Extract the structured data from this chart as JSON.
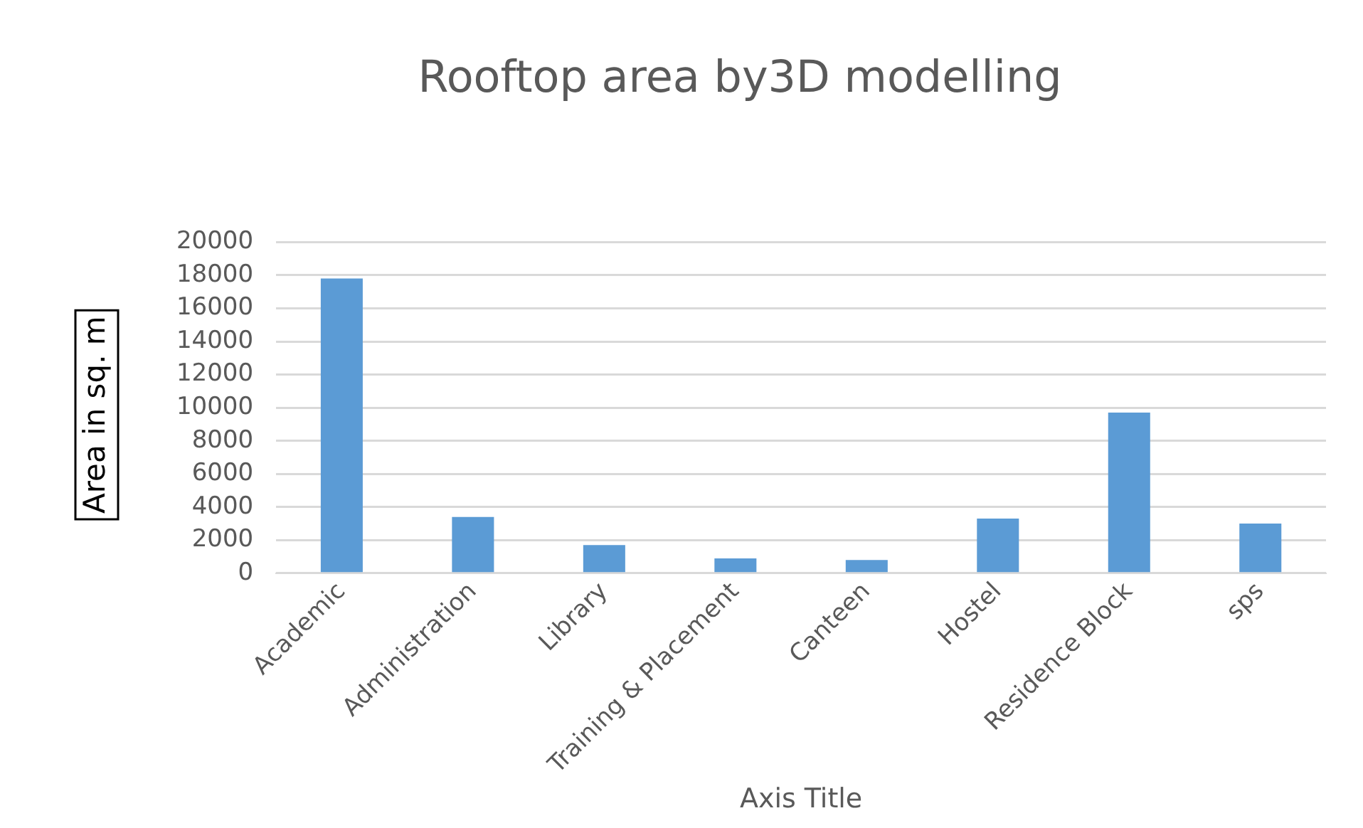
{
  "chart_data": {
    "type": "bar",
    "title": "Rooftop area by3D modelling",
    "xlabel": "Axis Title",
    "ylabel": "Area in sq. m",
    "categories": [
      "Academic",
      "Administration",
      "Library",
      "Training & Placement",
      "Canteen",
      "Hostel",
      "Residence Block",
      "sps"
    ],
    "values": [
      17800,
      3400,
      1700,
      900,
      800,
      3300,
      9700,
      3000
    ],
    "color": "#5b9bd5",
    "ylim": [
      0,
      20000
    ],
    "yticks": [
      0,
      2000,
      4000,
      6000,
      8000,
      10000,
      12000,
      14000,
      16000,
      18000,
      20000
    ],
    "grid": "y"
  }
}
